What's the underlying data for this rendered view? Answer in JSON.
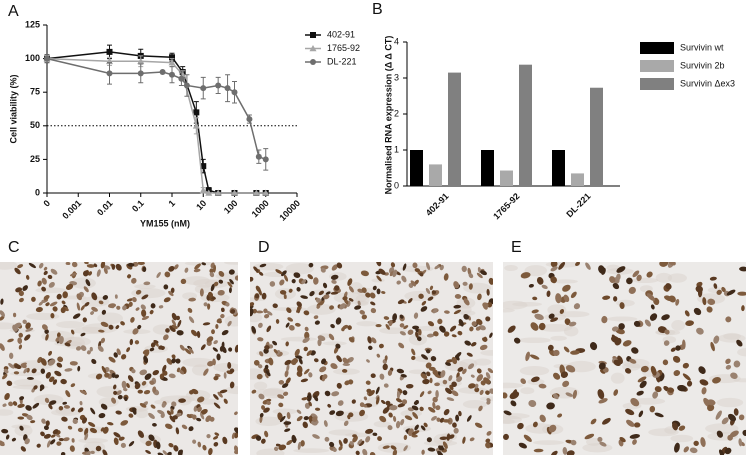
{
  "panel_labels": [
    "A",
    "B",
    "C",
    "D",
    "E"
  ],
  "chart_data": [
    {
      "type": "scatter",
      "xscale": "log",
      "xlabel": "YM155 (nM)",
      "ylabel": "Cell viability (%)",
      "xlim": [
        0.0001,
        10000
      ],
      "ylim": [
        0,
        125
      ],
      "xticks": [
        {
          "value": 0.0001,
          "label": "0"
        },
        0.001,
        0.01,
        0.1,
        1,
        10,
        100,
        1000,
        10000
      ],
      "yticks": [
        0,
        25,
        50,
        75,
        100,
        125
      ],
      "hline": 50,
      "legend": "upper right",
      "series": [
        {
          "name": "402-91",
          "color": "#111111",
          "marker": "square",
          "x": [
            0.0001,
            0.01,
            0.1,
            1,
            2.2,
            6,
            10,
            15,
            30,
            100,
            500,
            1000
          ],
          "values": [
            100,
            105,
            102,
            101,
            90,
            60,
            20,
            2,
            0,
            0,
            0,
            0
          ],
          "errors": [
            3,
            5,
            5,
            3,
            4,
            8,
            5,
            2,
            0,
            0,
            0,
            0
          ]
        },
        {
          "name": "1765-92",
          "color": "#a6a6a6",
          "marker": "triangle",
          "x": [
            0.0001,
            0.01,
            0.1,
            1,
            2.2,
            6,
            10,
            15,
            30,
            100,
            500,
            1000
          ],
          "values": [
            100,
            98,
            98,
            97,
            88,
            50,
            2,
            0,
            0,
            0,
            0,
            0
          ],
          "errors": [
            2,
            3,
            4,
            3,
            3,
            6,
            2,
            0,
            0,
            0,
            0,
            0
          ]
        },
        {
          "name": "DL-221",
          "color": "#6e6e6e",
          "marker": "circle",
          "x": [
            0.0001,
            0.01,
            0.1,
            0.5,
            1,
            2,
            3,
            10,
            30,
            60,
            100,
            300,
            600,
            1000
          ],
          "values": [
            100,
            89,
            89,
            90,
            88,
            85,
            80,
            78,
            80,
            78,
            75,
            55,
            27,
            25
          ],
          "errors": [
            3,
            8,
            7,
            0,
            6,
            5,
            8,
            8,
            6,
            10,
            8,
            3,
            5,
            8
          ]
        }
      ]
    },
    {
      "type": "bar",
      "ylabel": "Normalised RNA expression (Δ Δ CT)",
      "categories": [
        "402-91",
        "1765-92",
        "DL-221"
      ],
      "ylim": [
        0,
        4
      ],
      "yticks": [
        0,
        1,
        2,
        3,
        4
      ],
      "legend": "right",
      "series": [
        {
          "name": "Survivin wt",
          "color": "#000000",
          "values": [
            1,
            1,
            1
          ]
        },
        {
          "name": "Survivin 2b",
          "color": "#a9a9a9",
          "values": [
            0.6,
            0.43,
            0.35
          ]
        },
        {
          "name": "Survivin Δex3",
          "color": "#808080",
          "values": [
            3.15,
            3.37,
            2.73
          ]
        }
      ]
    }
  ]
}
